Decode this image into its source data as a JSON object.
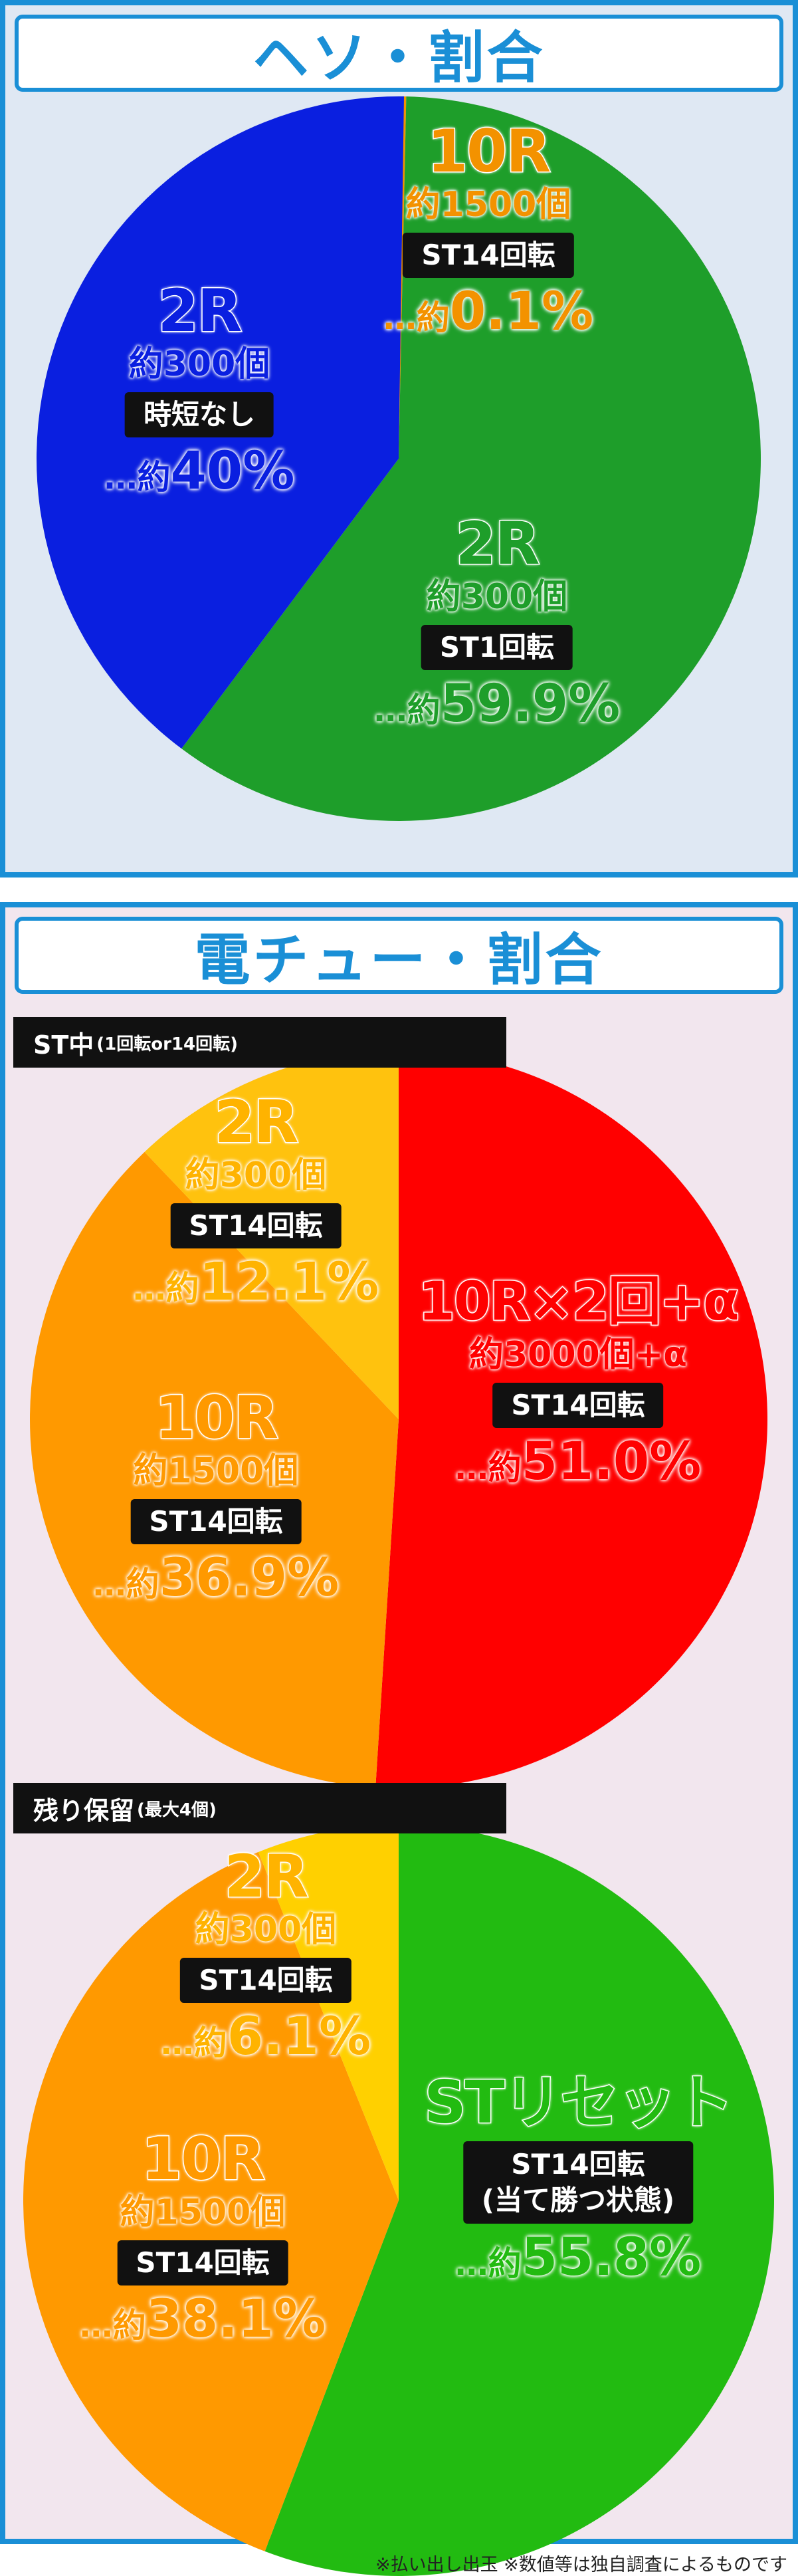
{
  "title_heso": "ヘソ・割合",
  "title_denchu": "電チュー・割合",
  "tag_st": {
    "main": "ST中",
    "sub": "(1回転or14回転)"
  },
  "tag_hold": {
    "main": "残り保留",
    "sub": "(最大4個)"
  },
  "footnote": "※払い出し出玉 ※数値等は独自調査によるものです",
  "labels": {
    "heso": [
      {
        "round": "10R",
        "balls": "約1500個",
        "bar": "ST14回転",
        "prefix": "…約",
        "pct": "0.1%"
      },
      {
        "round": "2R",
        "balls": "約300個",
        "bar": "時短なし",
        "prefix": "…約",
        "pct": "40%"
      },
      {
        "round": "2R",
        "balls": "約300個",
        "bar": "ST1回転",
        "prefix": "…約",
        "pct": "59.9%"
      }
    ],
    "st": [
      {
        "round": "2R",
        "balls": "約300個",
        "bar": "ST14回転",
        "prefix": "…約",
        "pct": "12.1%"
      },
      {
        "round": "10R×2回+α",
        "balls": "約3000個+α",
        "bar": "ST14回転",
        "prefix": "…約",
        "pct": "51.0%"
      },
      {
        "round": "10R",
        "balls": "約1500個",
        "bar": "ST14回転",
        "prefix": "…約",
        "pct": "36.9%"
      }
    ],
    "hold": [
      {
        "round": "2R",
        "balls": "約300個",
        "bar": "ST14回転",
        "prefix": "…約",
        "pct": "6.1%"
      },
      {
        "round": "STリセット",
        "bar": "ST14回転",
        "bar2": "(当て勝つ状態)",
        "prefix": "…約",
        "pct": "55.8%"
      },
      {
        "round": "10R",
        "balls": "約1500個",
        "bar": "ST14回転",
        "prefix": "…約",
        "pct": "38.1%"
      }
    ]
  },
  "chart_data": [
    {
      "type": "pie",
      "title": "ヘソ・割合",
      "slices": [
        {
          "label": "10R 約1500個 ST14回転",
          "value": 0.1,
          "color": "#f39200"
        },
        {
          "label": "2R 約300個 ST1回転",
          "value": 59.9,
          "color": "#1e9e2a"
        },
        {
          "label": "2R 約300個 時短なし",
          "value": 40.0,
          "color": "#0a1fe0"
        }
      ],
      "unit": "%"
    },
    {
      "type": "pie",
      "title": "ST中(1回転or14回転)",
      "slices": [
        {
          "label": "10R×2回+α 約3000個+α ST14回転",
          "value": 51.0,
          "color": "#ff0000"
        },
        {
          "label": "10R 約1500個 ST14回転",
          "value": 36.9,
          "color": "#ff9900"
        },
        {
          "label": "2R 約300個 ST14回転",
          "value": 12.1,
          "color": "#ffc20e"
        }
      ],
      "unit": "%"
    },
    {
      "type": "pie",
      "title": "残り保留(最大4個)",
      "slices": [
        {
          "label": "STリセット ST14回転(当て勝つ状態)",
          "value": 55.8,
          "color": "#22bb11"
        },
        {
          "label": "10R 約1500個 ST14回転",
          "value": 38.1,
          "color": "#ff9900"
        },
        {
          "label": "2R 約300個 ST14回転",
          "value": 6.1,
          "color": "#ffd000"
        }
      ],
      "unit": "%"
    }
  ]
}
